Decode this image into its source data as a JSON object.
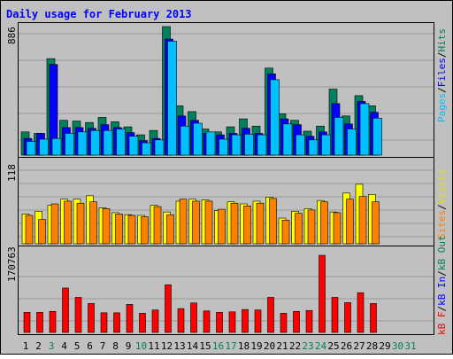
{
  "chart_data": [
    {
      "type": "bar",
      "title": "Daily usage for February 2013",
      "panel": "hits-files-pages",
      "ymax_label": "886",
      "ylim": [
        0,
        886
      ],
      "categories": [
        "1",
        "2",
        "3",
        "4",
        "5",
        "6",
        "7",
        "8",
        "9",
        "10",
        "11",
        "12",
        "13",
        "14",
        "15",
        "16",
        "17",
        "18",
        "19",
        "20",
        "21",
        "22",
        "23",
        "24",
        "25",
        "26",
        "27",
        "28",
        "29",
        "30",
        "31"
      ],
      "weekend_days": [
        "3",
        "10",
        "16",
        "17",
        "23",
        "24",
        "30",
        "31"
      ],
      "series": [
        {
          "name": "Hits",
          "color": "#00805c",
          "values": [
            160,
            150,
            665,
            240,
            235,
            225,
            260,
            230,
            195,
            140,
            170,
            886,
            340,
            300,
            180,
            160,
            195,
            250,
            200,
            600,
            285,
            240,
            165,
            200,
            455,
            270,
            410,
            340,
            null,
            null,
            null
          ]
        },
        {
          "name": "Files",
          "color": "#0000ff",
          "values": [
            115,
            150,
            625,
            190,
            190,
            185,
            210,
            190,
            155,
            100,
            115,
            800,
            270,
            240,
            150,
            140,
            150,
            185,
            150,
            560,
            250,
            210,
            130,
            160,
            355,
            215,
            370,
            295,
            null,
            null,
            null
          ]
        },
        {
          "name": "Pages",
          "color": "#00c0ff",
          "values": [
            95,
            110,
            115,
            150,
            160,
            170,
            170,
            180,
            130,
            85,
            105,
            785,
            200,
            220,
            160,
            110,
            140,
            145,
            140,
            520,
            215,
            140,
            105,
            140,
            260,
            180,
            355,
            255,
            null,
            null,
            null
          ]
        }
      ],
      "right_legend": [
        "Pages",
        "Files",
        "Hits"
      ]
    },
    {
      "type": "bar",
      "panel": "visits-sites",
      "ymax_label": "118",
      "ylim": [
        0,
        118
      ],
      "series": [
        {
          "name": "Visits",
          "color": "#ffff00",
          "values": [
            44,
            48,
            57,
            66,
            66,
            71,
            53,
            46,
            43,
            42,
            57,
            47,
            63,
            66,
            65,
            49,
            62,
            59,
            63,
            69,
            38,
            48,
            52,
            64,
            47,
            75,
            88,
            73,
            null,
            null,
            null
          ]
        },
        {
          "name": "Sites",
          "color": "#ff8000",
          "values": [
            42,
            36,
            59,
            63,
            60,
            62,
            52,
            44,
            42,
            40,
            55,
            43,
            66,
            63,
            63,
            51,
            60,
            56,
            60,
            67,
            35,
            45,
            50,
            62,
            46,
            66,
            70,
            62,
            null,
            null,
            null
          ]
        }
      ],
      "right_legend": [
        "Sites",
        "Visits"
      ]
    },
    {
      "type": "bar",
      "panel": "kbytes",
      "ymax_label": "170763",
      "ylim": [
        0,
        170763
      ],
      "series": [
        {
          "name": "KBytes",
          "color": "#ff0000",
          "values": [
            43000,
            43000,
            45000,
            95000,
            75000,
            62000,
            42000,
            42000,
            60000,
            41000,
            48000,
            102000,
            51000,
            63000,
            46000,
            43000,
            44000,
            49000,
            48000,
            75000,
            41000,
            45000,
            47000,
            165000,
            75000,
            64000,
            85000,
            62000,
            null,
            null,
            null
          ]
        }
      ],
      "right_legend_labels": [
        "kB F",
        "kB In",
        "kB Out"
      ]
    }
  ],
  "colors": {
    "title": "#0000ff",
    "frame_bg": "#c0c0c0",
    "plot_bg": "#c0c0c0",
    "weekday_label": "#000000",
    "weekend_label": "#00805c",
    "legend_hits": "#00805c",
    "legend_files": "#0000ff",
    "legend_pages": "#00c0ff",
    "legend_visits": "#ffff00",
    "legend_sites": "#ff8000",
    "legend_kbf": "#ff0000",
    "legend_kbin": "#0000ff",
    "legend_kbout": "#00805c"
  },
  "legend_separator": "/"
}
